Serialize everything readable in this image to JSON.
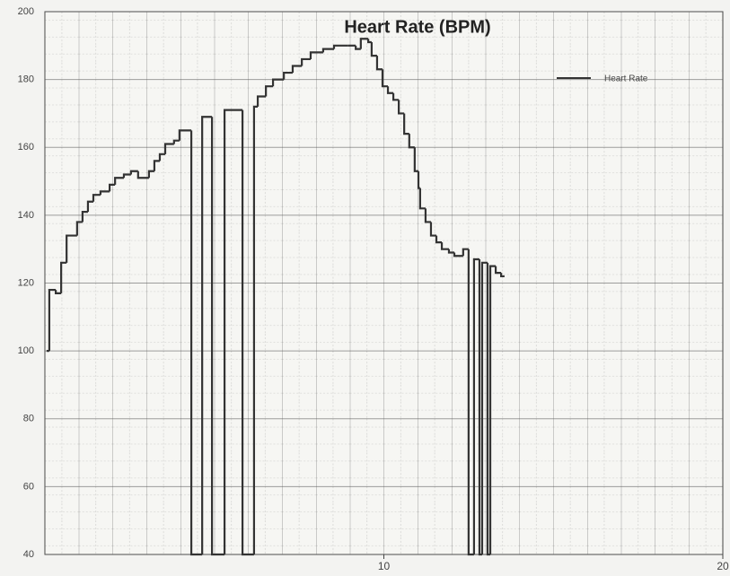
{
  "chart_data": {
    "type": "step",
    "title": "Heart Rate (BPM)",
    "x": [
      0.05,
      0.13,
      0.32,
      0.48,
      0.64,
      0.95,
      1.11,
      1.27,
      1.43,
      1.64,
      1.91,
      2.07,
      2.33,
      2.54,
      2.75,
      3.07,
      3.23,
      3.39,
      3.55,
      3.81,
      3.97,
      4.32,
      4.64,
      4.93,
      5.3,
      5.83,
      6.17,
      6.28,
      6.52,
      6.73,
      7.05,
      7.31,
      7.58,
      7.84,
      8.21,
      8.53,
      8.95,
      9.17,
      9.32,
      9.54,
      9.64,
      9.8,
      9.96,
      10.12,
      10.28,
      10.44,
      10.6,
      10.75,
      10.91,
      11.02,
      11.07,
      11.23,
      11.39,
      11.55,
      11.71,
      11.92,
      12.08,
      12.34,
      12.5,
      12.66,
      12.82,
      12.9,
      13.06,
      13.14,
      13.3,
      13.46,
      13.56
    ],
    "series": [
      {
        "name": "Heart Rate",
        "color": "#333333",
        "values": [
          100,
          118,
          117,
          126,
          134,
          138,
          141,
          144,
          146,
          147,
          149,
          151,
          152,
          153,
          151,
          153,
          156,
          158,
          161,
          162,
          165,
          40,
          169,
          40,
          171,
          40,
          172,
          175,
          178,
          180,
          182,
          184,
          186,
          188,
          189,
          190,
          190,
          189,
          192,
          191,
          187,
          183,
          178,
          176,
          174,
          170,
          164,
          160,
          153,
          148,
          142,
          138,
          134,
          132,
          130,
          129,
          128,
          130,
          40,
          127,
          40,
          126,
          40,
          125,
          123,
          122,
          122
        ]
      }
    ],
    "xlim": [
      0,
      20
    ],
    "xticks": [
      10,
      20
    ],
    "ylim": [
      40,
      200
    ],
    "yticks": [
      40,
      60,
      80,
      100,
      120,
      140,
      160,
      180,
      200
    ],
    "grid": true,
    "legend": "upper right"
  }
}
